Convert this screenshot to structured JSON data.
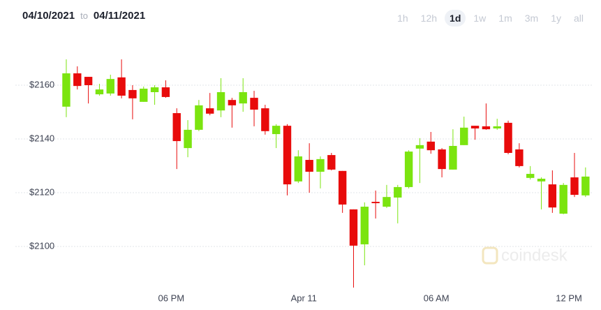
{
  "header": {
    "start": "04/10/2021",
    "to": "to",
    "end": "04/11/2021",
    "ranges": [
      "1h",
      "12h",
      "1d",
      "1w",
      "1m",
      "3m",
      "1y",
      "all"
    ],
    "selected": 2
  },
  "chart_data": {
    "type": "candlestick",
    "watermark": "coindesk",
    "colors": {
      "up": "#7be40f",
      "down": "#e80b0b"
    },
    "open": [
      2152.0,
      2164.4,
      2163.1,
      2156.6,
      2156.9,
      2162.9,
      2158.2,
      2153.8,
      2157.4,
      2159.2,
      2149.6,
      2136.6,
      2143.4,
      2151.4,
      2150.6,
      2154.5,
      2153.2,
      2155.3,
      2151.4,
      2141.8,
      2144.9,
      2124.2,
      2132.2,
      2127.8,
      2134.0,
      2128.1,
      2113.8,
      2100.8,
      2116.6,
      2114.8,
      2118.2,
      2122.1,
      2136.4,
      2139.0,
      2136.1,
      2128.6,
      2137.7,
      2144.9,
      2144.7,
      2143.9,
      2146.0,
      2136.1,
      2125.5,
      2124.2,
      2123.1,
      2112.2,
      2125.7,
      2119.0
    ],
    "high": [
      2169.6,
      2167.0,
      2163.1,
      2160.5,
      2163.9,
      2169.6,
      2160.0,
      2159.5,
      2160.0,
      2161.8,
      2151.4,
      2147.0,
      2154.5,
      2157.1,
      2162.6,
      2155.3,
      2162.6,
      2157.9,
      2152.7,
      2145.5,
      2145.5,
      2135.8,
      2138.4,
      2133.5,
      2134.8,
      2128.1,
      2113.8,
      2116.4,
      2120.8,
      2122.9,
      2122.9,
      2135.8,
      2140.3,
      2142.6,
      2136.6,
      2143.6,
      2148.3,
      2144.9,
      2153.2,
      2147.5,
      2146.8,
      2138.4,
      2129.9,
      2125.7,
      2128.3,
      2123.6,
      2134.8,
      2129.4
    ],
    "low": [
      2148.1,
      2158.4,
      2153.2,
      2156.1,
      2156.1,
      2155.1,
      2147.3,
      2153.8,
      2152.7,
      2155.3,
      2128.8,
      2133.2,
      2142.9,
      2148.8,
      2148.1,
      2144.2,
      2150.1,
      2144.7,
      2141.6,
      2136.6,
      2119.0,
      2123.6,
      2120.0,
      2121.6,
      2128.3,
      2112.5,
      2084.7,
      2093.0,
      2110.4,
      2114.3,
      2108.6,
      2121.6,
      2123.6,
      2134.5,
      2125.7,
      2128.6,
      2137.7,
      2139.7,
      2143.4,
      2143.4,
      2134.3,
      2129.4,
      2124.9,
      2113.8,
      2112.5,
      2112.0,
      2118.4,
      2118.4
    ],
    "close": [
      2164.4,
      2159.7,
      2160.0,
      2158.4,
      2162.3,
      2156.1,
      2155.1,
      2158.7,
      2159.2,
      2155.6,
      2139.2,
      2143.4,
      2152.5,
      2149.4,
      2157.4,
      2152.5,
      2157.4,
      2150.9,
      2142.9,
      2144.9,
      2123.1,
      2133.5,
      2127.8,
      2132.5,
      2128.6,
      2115.6,
      2100.3,
      2114.8,
      2116.1,
      2118.4,
      2122.1,
      2135.3,
      2137.7,
      2135.8,
      2128.8,
      2137.4,
      2144.2,
      2143.9,
      2143.6,
      2144.7,
      2134.8,
      2129.9,
      2127.0,
      2125.2,
      2114.5,
      2122.9,
      2119.2,
      2126.0
    ],
    "xlim": [
      -6,
      48.4
    ],
    "xticks": [
      {
        "value": 9.5,
        "label": "06 PM"
      },
      {
        "value": 21.5,
        "label": "Apr 11"
      },
      {
        "value": 33.5,
        "label": "06 AM"
      },
      {
        "value": 45.5,
        "label": "12 PM"
      }
    ],
    "ylim": [
      2082.6,
      2176.1
    ],
    "yticks": [
      {
        "value": 2100,
        "label": "$2100"
      },
      {
        "value": 2120,
        "label": "$2120"
      },
      {
        "value": 2140,
        "label": "$2140"
      },
      {
        "value": 2160,
        "label": "$2160"
      }
    ],
    "grid": true
  }
}
